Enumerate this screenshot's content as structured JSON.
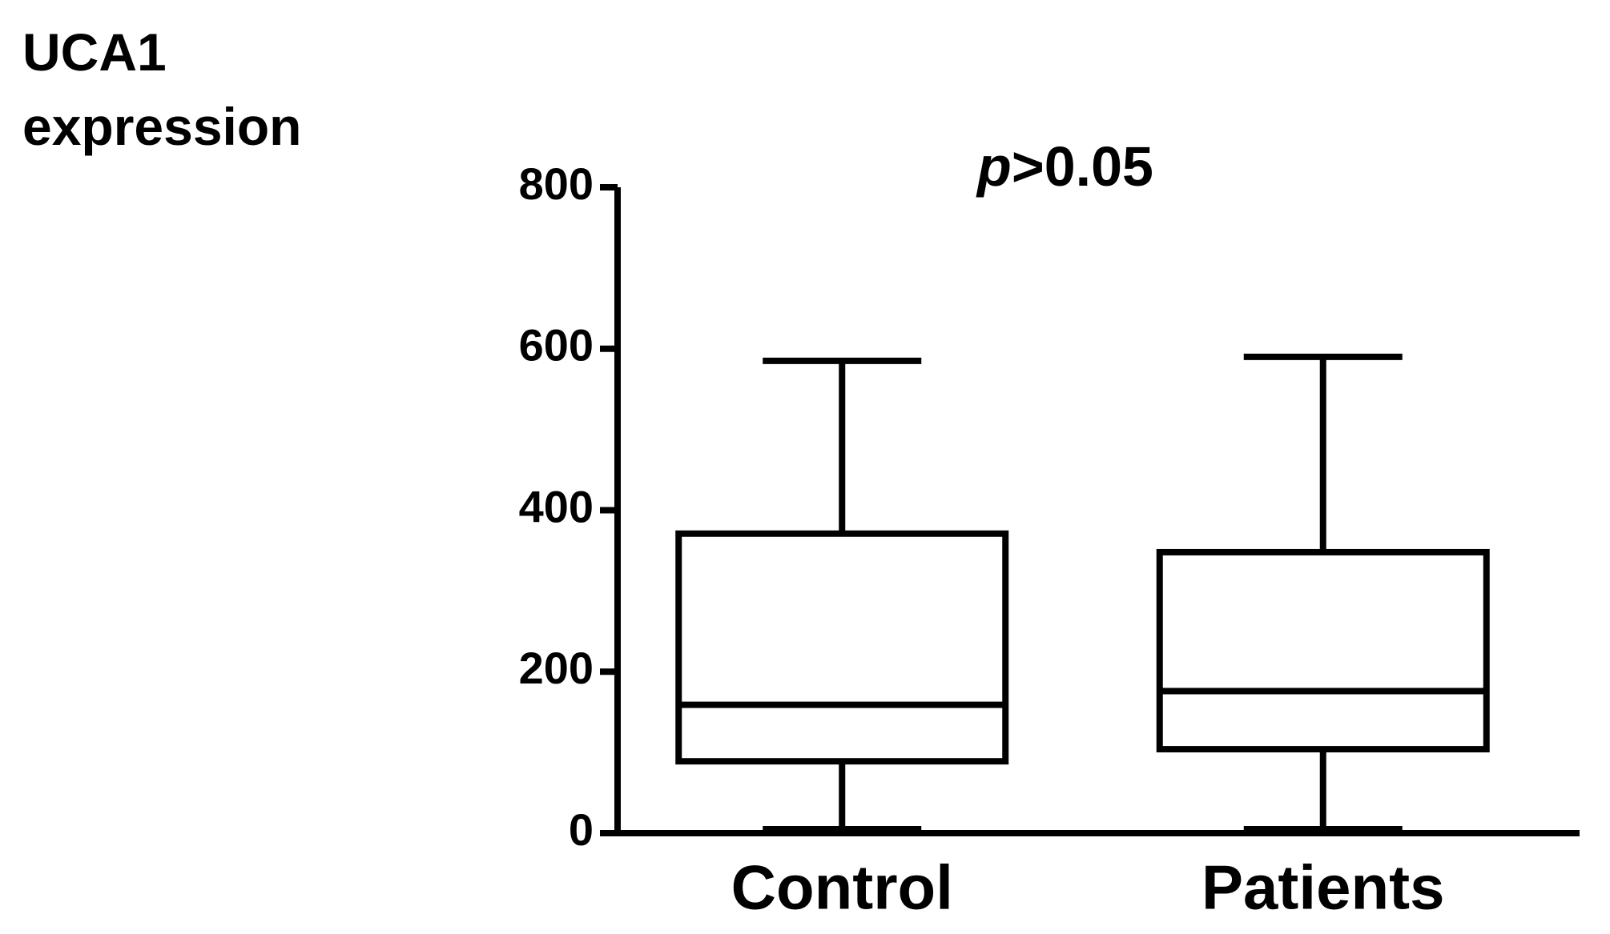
{
  "chart_data": {
    "type": "box",
    "ylabel": "UCA1 expression",
    "annotation": {
      "symbol": "p",
      "text": ">0.05"
    },
    "categories": [
      "Control",
      "Patients"
    ],
    "boxes": [
      {
        "min": 5,
        "q1": 89,
        "median": 159,
        "q3": 371,
        "max": 585
      },
      {
        "min": 5,
        "q1": 104,
        "median": 176,
        "q3": 348,
        "max": 590
      }
    ],
    "color": "#000000",
    "ylim": [
      0,
      800
    ],
    "yticks": [
      0,
      200,
      400,
      600,
      800
    ]
  }
}
